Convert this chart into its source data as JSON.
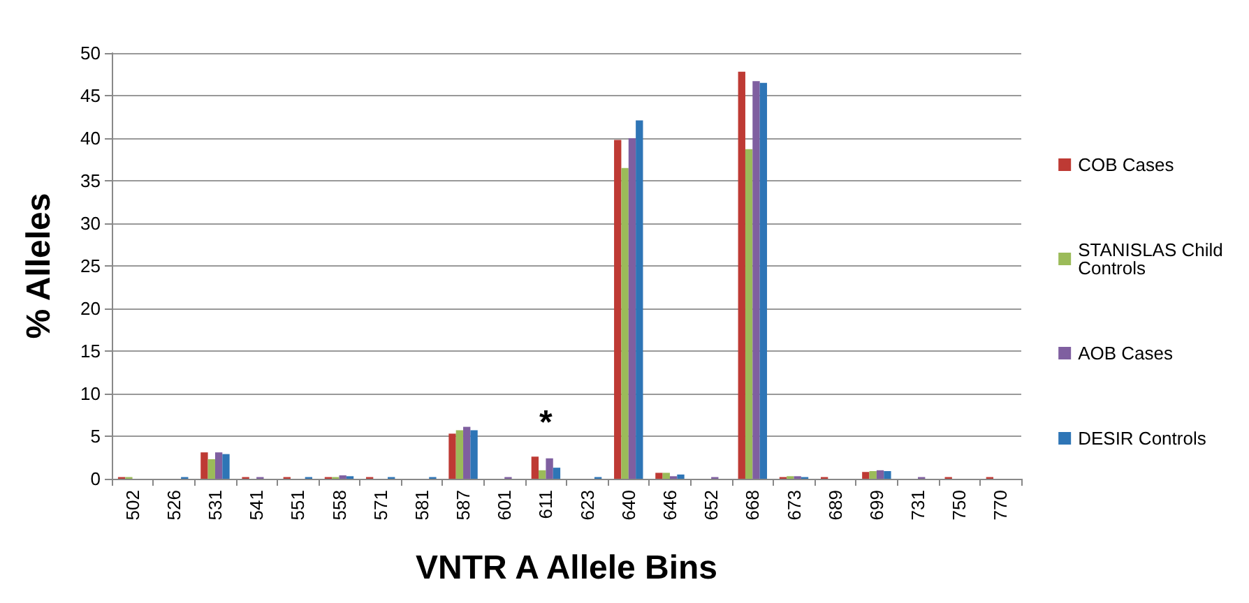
{
  "chart_data": {
    "type": "bar",
    "xlabel": "VNTR A Allele Bins",
    "ylabel": "% Alleles",
    "categories": [
      "502",
      "526",
      "531",
      "541",
      "551",
      "558",
      "571",
      "581",
      "587",
      "601",
      "611",
      "623",
      "640",
      "646",
      "652",
      "668",
      "673",
      "689",
      "699",
      "731",
      "750",
      "770"
    ],
    "series": [
      {
        "name": "COB Cases",
        "color": "#be3a34",
        "values": [
          0.2,
          0,
          3.1,
          0.2,
          0.2,
          0.2,
          0.2,
          0,
          5.3,
          0,
          2.6,
          0,
          39.8,
          0.7,
          0,
          47.8,
          0.2,
          0.2,
          0.8,
          0,
          0.2,
          0.2
        ]
      },
      {
        "name": "STANISLAS Child Controls",
        "color": "#9bbb59",
        "values": [
          0.2,
          0,
          2.3,
          0,
          0,
          0.2,
          0,
          0,
          5.7,
          0,
          1.0,
          0,
          36.5,
          0.7,
          0,
          38.7,
          0.3,
          0,
          0.9,
          0,
          0,
          0
        ]
      },
      {
        "name": "AOB Cases",
        "color": "#7f5fa0",
        "values": [
          0,
          0,
          3.1,
          0.2,
          0,
          0.4,
          0,
          0,
          6.1,
          0.2,
          2.4,
          0,
          40,
          0.3,
          0.2,
          46.7,
          0.3,
          0,
          1.0,
          0.2,
          0,
          0
        ]
      },
      {
        "name": "DESIR Controls",
        "color": "#2e75b6",
        "values": [
          0,
          0.2,
          2.9,
          0,
          0.2,
          0.3,
          0.2,
          0.2,
          5.7,
          0,
          1.3,
          0.2,
          42.1,
          0.5,
          0,
          46.5,
          0.2,
          0,
          0.9,
          0,
          0,
          0
        ]
      }
    ],
    "ylim": [
      0,
      50
    ],
    "yticks": [
      0,
      5,
      10,
      15,
      20,
      25,
      30,
      35,
      40,
      45,
      50
    ],
    "grid": "y",
    "legend": "right",
    "annotations": [
      {
        "text": "*",
        "x": "611",
        "y": 2.6
      }
    ]
  }
}
